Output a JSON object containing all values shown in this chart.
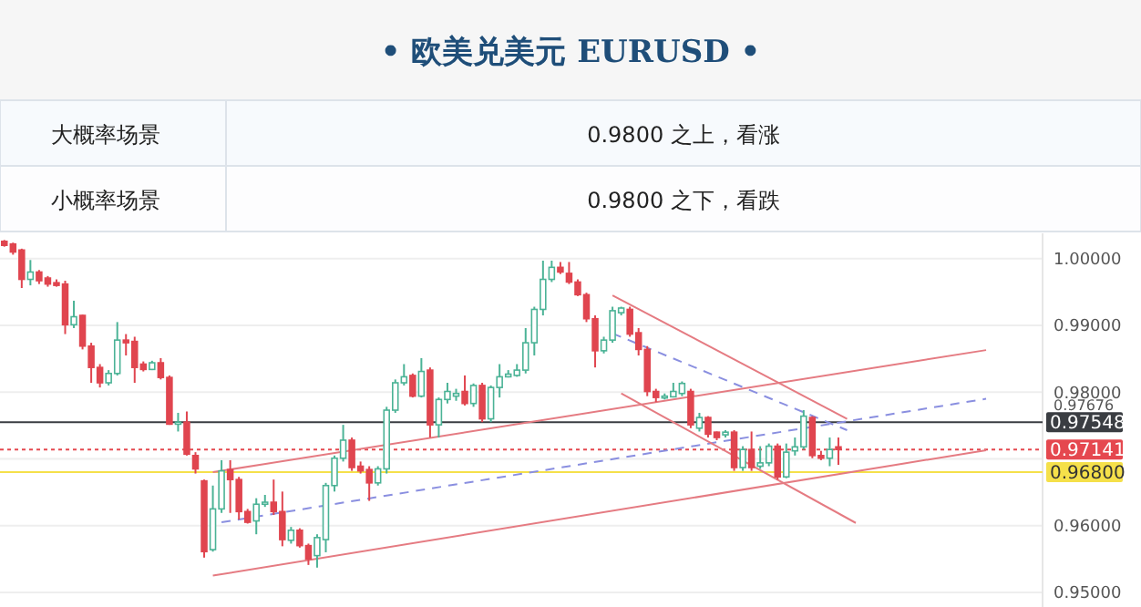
{
  "chart_data": {
    "type": "candlestick",
    "title": "• 欧美兑美元 EURUSD •",
    "annotations": [
      "大概率场景",
      "0.9800 之上，看涨",
      "小概率场景",
      "0.9800 之下，看跌",
      "0.97676"
    ],
    "categories": [
      null,
      null,
      null,
      null,
      null,
      null,
      null,
      null,
      null,
      null,
      null,
      null,
      null,
      null,
      null,
      null,
      null,
      null,
      null,
      null,
      null,
      null,
      null,
      null,
      null,
      null,
      null,
      null,
      null,
      null,
      null,
      null,
      null,
      null,
      null,
      null,
      null,
      null,
      null,
      null,
      null,
      null,
      null,
      null,
      null,
      null,
      null,
      null,
      null,
      null,
      null,
      null,
      null,
      null,
      null,
      null,
      null,
      null,
      null,
      null,
      null,
      null,
      null,
      null,
      null,
      null,
      null,
      null,
      null,
      null,
      null,
      null,
      null,
      null,
      null,
      null,
      null,
      null,
      null,
      null,
      null,
      null,
      null,
      null,
      null,
      null,
      null,
      null,
      null,
      null,
      null,
      null,
      null,
      null,
      null,
      null,
      null,
      null,
      null,
      null,
      null,
      null,
      null,
      null,
      null,
      null,
      null,
      null,
      null,
      null,
      null,
      null,
      null,
      null,
      null,
      null,
      null,
      null,
      null,
      null
    ],
    "ohlc": [
      [
        1.0026,
        1.0028,
        1.0018,
        1.002
      ],
      [
        1.0022,
        1.0024,
        1.0006,
        1.001
      ],
      [
        1.0013,
        1.0015,
        0.9956,
        0.9969
      ],
      [
        0.9969,
        0.9998,
        0.996,
        0.998
      ],
      [
        0.998,
        0.9983,
        0.9962,
        0.9967
      ],
      [
        0.9971,
        0.9974,
        0.9958,
        0.9962
      ],
      [
        0.9964,
        0.9969,
        0.9958,
        0.996
      ],
      [
        0.9962,
        0.9967,
        0.9887,
        0.9901
      ],
      [
        0.9901,
        0.9937,
        0.9896,
        0.9913
      ],
      [
        0.9915,
        0.9916,
        0.9864,
        0.9869
      ],
      [
        0.9869,
        0.9874,
        0.9814,
        0.9837
      ],
      [
        0.9837,
        0.9842,
        0.9807,
        0.9814
      ],
      [
        0.9814,
        0.9833,
        0.981,
        0.9828
      ],
      [
        0.9828,
        0.9905,
        0.9825,
        0.9878
      ],
      [
        0.9878,
        0.9887,
        0.9855,
        0.9874
      ],
      [
        0.9876,
        0.9883,
        0.9814,
        0.9837
      ],
      [
        0.9842,
        0.9846,
        0.9831,
        0.9834
      ],
      [
        0.9834,
        0.9847,
        0.9833,
        0.9844
      ],
      [
        0.9844,
        0.9851,
        0.9819,
        0.9822
      ],
      [
        0.9822,
        0.9825,
        0.9751,
        0.9752
      ],
      [
        0.9752,
        0.9769,
        0.9741,
        0.9755
      ],
      [
        0.9755,
        0.9771,
        0.9705,
        0.9707
      ],
      [
        0.9705,
        0.971,
        0.9678,
        0.9685
      ],
      [
        0.9667,
        0.9669,
        0.9552,
        0.9561
      ],
      [
        0.9564,
        0.966,
        0.9561,
        0.9625
      ],
      [
        0.9625,
        0.9698,
        0.9619,
        0.9682
      ],
      [
        0.9684,
        0.9698,
        0.9619,
        0.9669
      ],
      [
        0.9669,
        0.9673,
        0.9609,
        0.9621
      ],
      [
        0.9621,
        0.9625,
        0.9603,
        0.9605
      ],
      [
        0.9607,
        0.9641,
        0.9587,
        0.9632
      ],
      [
        0.9632,
        0.9646,
        0.9628,
        0.9635
      ],
      [
        0.9635,
        0.9669,
        0.9616,
        0.9621
      ],
      [
        0.9621,
        0.9651,
        0.9569,
        0.9579
      ],
      [
        0.9578,
        0.9598,
        0.9573,
        0.9593
      ],
      [
        0.9593,
        0.9596,
        0.9567,
        0.957
      ],
      [
        0.957,
        0.9573,
        0.9541,
        0.955
      ],
      [
        0.9555,
        0.9587,
        0.9537,
        0.9582
      ],
      [
        0.9579,
        0.9664,
        0.956,
        0.966
      ],
      [
        0.966,
        0.9705,
        0.9651,
        0.9701
      ],
      [
        0.9701,
        0.9751,
        0.9696,
        0.9728
      ],
      [
        0.9728,
        0.9732,
        0.9682,
        0.9687
      ],
      [
        0.9689,
        0.9696,
        0.9678,
        0.9682
      ],
      [
        0.9684,
        0.9689,
        0.9637,
        0.9664
      ],
      [
        0.9664,
        0.9689,
        0.966,
        0.9685
      ],
      [
        0.9685,
        0.9778,
        0.9678,
        0.9773
      ],
      [
        0.9773,
        0.9819,
        0.9769,
        0.9814
      ],
      [
        0.9814,
        0.9842,
        0.981,
        0.9823
      ],
      [
        0.9825,
        0.9828,
        0.9792,
        0.9794
      ],
      [
        0.9794,
        0.9851,
        0.9792,
        0.9831
      ],
      [
        0.9833,
        0.9837,
        0.9732,
        0.9751
      ],
      [
        0.9751,
        0.9792,
        0.9732,
        0.9789
      ],
      [
        0.9789,
        0.9814,
        0.9783,
        0.9801
      ],
      [
        0.9794,
        0.9805,
        0.9787,
        0.9798
      ],
      [
        0.9801,
        0.9825,
        0.978,
        0.9783
      ],
      [
        0.9783,
        0.9813,
        0.9778,
        0.981
      ],
      [
        0.981,
        0.9814,
        0.9755,
        0.976
      ],
      [
        0.976,
        0.981,
        0.9755,
        0.9807
      ],
      [
        0.9807,
        0.9842,
        0.9792,
        0.9823
      ],
      [
        0.9823,
        0.9833,
        0.9822,
        0.9827
      ],
      [
        0.9825,
        0.9842,
        0.9823,
        0.9833
      ],
      [
        0.9833,
        0.9896,
        0.9828,
        0.9874
      ],
      [
        0.9874,
        0.9928,
        0.9855,
        0.9924
      ],
      [
        0.9924,
        0.9997,
        0.9915,
        0.9969
      ],
      [
        0.9969,
        0.9997,
        0.9965,
        0.9987
      ],
      [
        0.9987,
        0.9995,
        0.9977,
        0.998
      ],
      [
        0.9978,
        0.9995,
        0.9962,
        0.9965
      ],
      [
        0.9965,
        0.9969,
        0.9944,
        0.9946
      ],
      [
        0.9946,
        0.9949,
        0.9905,
        0.991
      ],
      [
        0.991,
        0.9915,
        0.9837,
        0.9862
      ],
      [
        0.9862,
        0.9883,
        0.9858,
        0.9878
      ],
      [
        0.9878,
        0.9928,
        0.9874,
        0.9922
      ],
      [
        0.9919,
        0.9928,
        0.9915,
        0.9926
      ],
      [
        0.9924,
        0.9928,
        0.9883,
        0.9887
      ],
      [
        0.9889,
        0.9896,
        0.9855,
        0.9864
      ],
      [
        0.9864,
        0.9869,
        0.9794,
        0.9801
      ],
      [
        0.9801,
        0.9805,
        0.9785,
        0.9792
      ],
      [
        0.9792,
        0.9798,
        0.9789,
        0.9794
      ],
      [
        0.9793,
        0.9814,
        0.9792,
        0.9801
      ],
      [
        0.9798,
        0.9816,
        0.9794,
        0.9813
      ],
      [
        0.9801,
        0.9805,
        0.9746,
        0.9751
      ],
      [
        0.9746,
        0.9769,
        0.9741,
        0.9762
      ],
      [
        0.9762,
        0.9764,
        0.9732,
        0.9737
      ],
      [
        0.974,
        0.9741,
        0.9728,
        0.9732
      ],
      [
        0.9736,
        0.9743,
        0.9732,
        0.974
      ],
      [
        0.974,
        0.9743,
        0.9682,
        0.9687
      ],
      [
        0.9687,
        0.9719,
        0.9682,
        0.9714
      ],
      [
        0.9714,
        0.9741,
        0.9682,
        0.9687
      ],
      [
        0.9689,
        0.9719,
        0.9685,
        0.9694
      ],
      [
        0.9694,
        0.9723,
        0.9689,
        0.9719
      ],
      [
        0.9719,
        0.9723,
        0.9669,
        0.9673
      ],
      [
        0.9673,
        0.9723,
        0.9671,
        0.971
      ],
      [
        0.9712,
        0.9732,
        0.9705,
        0.9718
      ],
      [
        0.9718,
        0.9773,
        0.9714,
        0.9764
      ],
      [
        0.9762,
        0.9764,
        0.9701,
        0.9705
      ],
      [
        0.9705,
        0.9712,
        0.9698,
        0.9701
      ],
      [
        0.9701,
        0.9732,
        0.9689,
        0.9714
      ],
      [
        0.9718,
        0.9732,
        0.9691,
        0.9714
      ],
      null,
      null,
      null,
      null,
      null,
      null,
      null,
      null,
      null,
      null,
      null,
      null,
      null,
      null,
      null,
      null,
      null,
      null,
      null,
      null,
      null,
      null,
      null
    ],
    "series": [
      {
        "type": "line",
        "color": "#e57b82",
        "values": [
          null,
          null,
          null,
          null,
          null,
          null,
          null,
          null,
          null,
          null,
          null,
          null,
          null,
          null,
          null,
          null,
          null,
          null,
          null,
          null,
          null,
          null,
          null,
          null,
          0.968,
          null,
          null,
          null,
          null,
          null,
          null,
          null,
          null,
          null,
          null,
          null,
          null,
          null,
          null,
          null,
          null,
          null,
          null,
          null,
          null,
          null,
          null,
          null,
          null,
          null,
          null,
          null,
          null,
          null,
          null,
          null,
          null,
          null,
          null,
          null,
          null,
          null,
          null,
          null,
          null,
          null,
          null,
          null,
          null,
          null,
          null,
          null,
          null,
          null,
          null,
          null,
          null,
          null,
          null,
          null,
          null,
          null,
          null,
          null,
          null,
          null,
          null,
          null,
          null,
          null,
          null,
          null,
          null,
          null,
          null,
          null,
          null,
          null,
          null,
          null,
          null,
          null,
          null,
          null,
          null,
          null,
          null,
          null,
          null,
          null,
          null,
          null,
          null,
          0.9863,
          null,
          null,
          null,
          null,
          null,
          null
        ]
      },
      {
        "type": "line",
        "color": "#e57b82",
        "values": [
          null,
          null,
          null,
          null,
          null,
          null,
          null,
          null,
          null,
          null,
          null,
          null,
          null,
          null,
          null,
          null,
          null,
          null,
          null,
          null,
          null,
          null,
          null,
          null,
          0.9525,
          null,
          null,
          null,
          null,
          null,
          null,
          null,
          null,
          null,
          null,
          null,
          null,
          null,
          null,
          null,
          null,
          null,
          null,
          null,
          null,
          null,
          null,
          null,
          null,
          null,
          null,
          null,
          null,
          null,
          null,
          null,
          null,
          null,
          null,
          null,
          null,
          null,
          null,
          null,
          null,
          null,
          null,
          null,
          null,
          null,
          null,
          null,
          null,
          null,
          null,
          null,
          null,
          null,
          null,
          null,
          null,
          null,
          null,
          null,
          null,
          null,
          null,
          null,
          null,
          null,
          null,
          null,
          null,
          null,
          null,
          null,
          null,
          null,
          null,
          null,
          null,
          null,
          null,
          null,
          null,
          null,
          null,
          null,
          null,
          null,
          null,
          null,
          null,
          0.9713,
          null,
          null,
          null,
          null,
          null,
          null
        ]
      },
      {
        "type": "line",
        "color": "#8a8fe0",
        "line_style": "dashed",
        "values": [
          null,
          null,
          null,
          null,
          null,
          null,
          null,
          null,
          null,
          null,
          null,
          null,
          null,
          null,
          null,
          null,
          null,
          null,
          null,
          null,
          null,
          null,
          null,
          null,
          null,
          0.9605,
          null,
          null,
          null,
          null,
          null,
          null,
          null,
          null,
          null,
          null,
          null,
          null,
          null,
          null,
          null,
          null,
          null,
          null,
          null,
          null,
          null,
          null,
          null,
          null,
          null,
          null,
          null,
          null,
          null,
          null,
          null,
          null,
          null,
          null,
          null,
          null,
          null,
          null,
          null,
          null,
          null,
          null,
          null,
          null,
          null,
          null,
          null,
          null,
          null,
          null,
          null,
          null,
          null,
          null,
          null,
          null,
          null,
          null,
          null,
          null,
          null,
          null,
          null,
          null,
          null,
          null,
          null,
          null,
          null,
          null,
          null,
          null,
          null,
          null,
          null,
          null,
          null,
          null,
          null,
          null,
          null,
          null,
          null,
          null,
          null,
          null,
          null,
          0.979,
          null,
          null,
          null,
          null,
          null,
          null
        ]
      },
      {
        "type": "line",
        "color": "#e57b82",
        "values": [
          null,
          null,
          null,
          null,
          null,
          null,
          null,
          null,
          null,
          null,
          null,
          null,
          null,
          null,
          null,
          null,
          null,
          null,
          null,
          null,
          null,
          null,
          null,
          null,
          null,
          null,
          null,
          null,
          null,
          null,
          null,
          null,
          null,
          null,
          null,
          null,
          null,
          null,
          null,
          null,
          null,
          null,
          null,
          null,
          null,
          null,
          null,
          null,
          null,
          null,
          null,
          null,
          null,
          null,
          null,
          null,
          null,
          null,
          null,
          null,
          null,
          null,
          null,
          null,
          null,
          null,
          null,
          null,
          null,
          null,
          0.9945,
          null,
          null,
          null,
          null,
          null,
          null,
          null,
          null,
          null,
          null,
          null,
          null,
          null,
          null,
          null,
          null,
          null,
          null,
          null,
          null,
          null,
          null,
          null,
          null,
          null,
          null,
          0.976,
          null,
          null,
          null,
          null,
          null,
          null,
          null,
          null,
          null,
          null,
          null,
          null,
          null,
          null,
          null,
          null,
          null,
          null,
          null,
          null,
          null,
          null
        ]
      },
      {
        "type": "line",
        "color": "#e57b82",
        "values": [
          null,
          null,
          null,
          null,
          null,
          null,
          null,
          null,
          null,
          null,
          null,
          null,
          null,
          null,
          null,
          null,
          null,
          null,
          null,
          null,
          null,
          null,
          null,
          null,
          null,
          null,
          null,
          null,
          null,
          null,
          null,
          null,
          null,
          null,
          null,
          null,
          null,
          null,
          null,
          null,
          null,
          null,
          null,
          null,
          null,
          null,
          null,
          null,
          null,
          null,
          null,
          null,
          null,
          null,
          null,
          null,
          null,
          null,
          null,
          null,
          null,
          null,
          null,
          null,
          null,
          null,
          null,
          null,
          null,
          null,
          null,
          0.9798,
          null,
          null,
          null,
          null,
          null,
          null,
          null,
          null,
          null,
          null,
          null,
          null,
          null,
          null,
          null,
          null,
          null,
          null,
          null,
          null,
          null,
          null,
          null,
          null,
          null,
          null,
          0.9604,
          null,
          null,
          null,
          null,
          null,
          null,
          null,
          null,
          null,
          null,
          null,
          null,
          null,
          null,
          null,
          null,
          null,
          null,
          null,
          null,
          null
        ]
      },
      {
        "type": "line",
        "color": "#8a8fe0",
        "line_style": "dashed",
        "values": [
          null,
          null,
          null,
          null,
          null,
          null,
          null,
          null,
          null,
          null,
          null,
          null,
          null,
          null,
          null,
          null,
          null,
          null,
          null,
          null,
          null,
          null,
          null,
          null,
          null,
          null,
          null,
          null,
          null,
          null,
          null,
          null,
          null,
          null,
          null,
          null,
          null,
          null,
          null,
          null,
          null,
          null,
          null,
          null,
          null,
          null,
          null,
          null,
          null,
          null,
          null,
          null,
          null,
          null,
          null,
          null,
          null,
          null,
          null,
          null,
          null,
          null,
          null,
          null,
          null,
          null,
          null,
          null,
          null,
          null,
          0.9888,
          null,
          null,
          null,
          null,
          null,
          null,
          null,
          null,
          null,
          null,
          null,
          null,
          null,
          null,
          null,
          null,
          null,
          null,
          null,
          null,
          null,
          null,
          null,
          null,
          null,
          null,
          0.9743,
          null,
          null,
          null,
          null,
          null,
          null,
          null,
          null,
          null,
          null,
          null,
          null,
          null,
          null,
          null,
          null,
          null,
          null,
          null,
          null,
          null,
          null
        ]
      }
    ],
    "ref_lines": [
      {
        "axis": "y",
        "value": 0.97548,
        "label": "0.97548",
        "color": "#3a3d42",
        "line_style": "solid"
      },
      {
        "axis": "y",
        "value": 0.97141,
        "label": "0.97141",
        "color": "#e5484f",
        "line_style": "dotted"
      },
      {
        "axis": "y",
        "value": 0.968,
        "label": "0.96800",
        "color": "#f5e04a",
        "line_style": "solid"
      }
    ],
    "ylim": [
      0.9478,
      1.0038
    ],
    "yticks": [
      {
        "value": 0.95,
        "label": "0.95000"
      },
      {
        "value": 0.96,
        "label": "0.96000"
      },
      {
        "value": 0.97,
        "label": null
      },
      {
        "value": 0.98,
        "label": "0.98000"
      },
      {
        "value": 0.99,
        "label": "0.99000"
      },
      {
        "value": 1.0,
        "label": "1.00000"
      }
    ],
    "grid": "y"
  }
}
